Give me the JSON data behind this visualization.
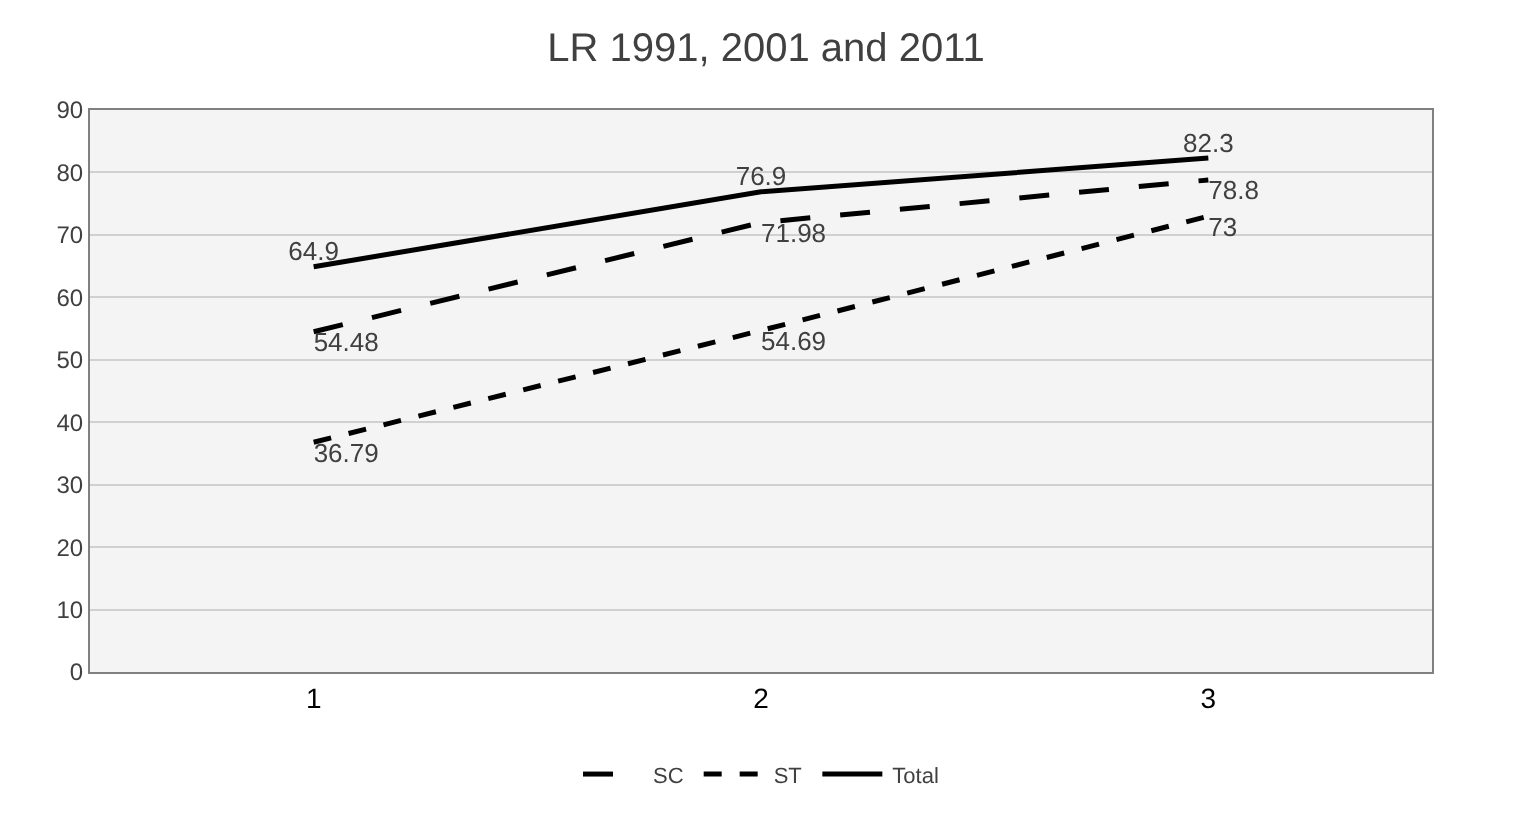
{
  "chart_data": {
    "type": "line",
    "title": "LR 1991, 2001 and 2011",
    "categories": [
      "1",
      "2",
      "3"
    ],
    "series": [
      {
        "name": "SC",
        "color": "#000000",
        "line_style": "dashed",
        "values": [
          54.48,
          71.98,
          78.8
        ]
      },
      {
        "name": "ST",
        "color": "#000000",
        "line_style": "dotted",
        "values": [
          36.79,
          54.69,
          73
        ]
      },
      {
        "name": "Total",
        "color": "#000000",
        "line_style": "solid",
        "values": [
          64.9,
          76.9,
          82.3
        ]
      }
    ],
    "ylim": [
      0,
      90
    ],
    "yticks": [
      0,
      10,
      20,
      30,
      40,
      50,
      60,
      70,
      80,
      90
    ],
    "grid": "y",
    "legend": "bottom",
    "data_labels": true,
    "marker": "none"
  }
}
